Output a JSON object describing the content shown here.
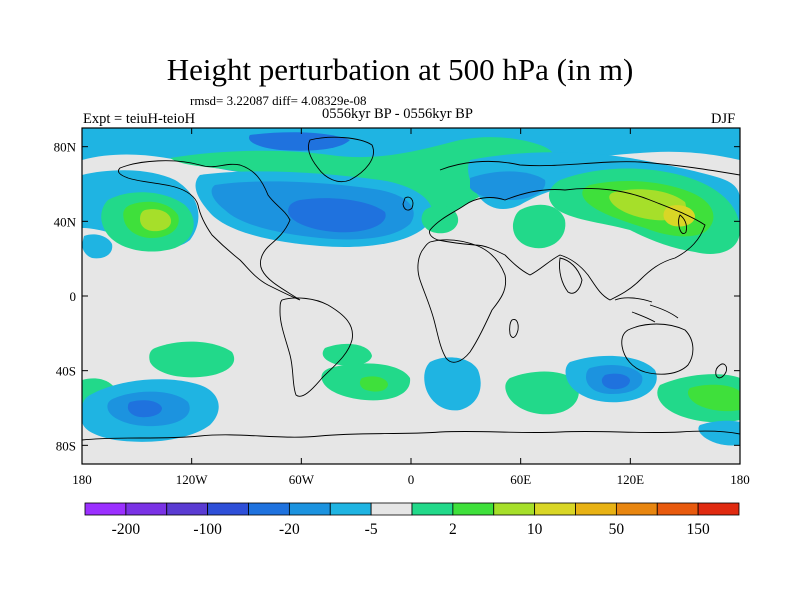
{
  "title": "Height perturbation at 500 hPa (in m)",
  "stats_line": "rmsd= 3.22087 diff= 4.08329e-08",
  "experiment": "Expt = teiuH-teioH",
  "period": "0556kyr BP - 0556kyr BP",
  "season": "DJF",
  "map": {
    "projection": "cylindrical-equidistant",
    "background_color": "#e6e6e6",
    "lat_ticks": [
      "80N",
      "40N",
      "0",
      "40S",
      "80S"
    ],
    "lon_ticks": [
      "180",
      "120W",
      "60W",
      "0",
      "60E",
      "120E",
      "180"
    ]
  },
  "colorbar": {
    "colors": [
      "#9b30ff",
      "#7a32e5",
      "#5a3bd2",
      "#2e4fd8",
      "#1f72de",
      "#1c93df",
      "#1fb4e2",
      "#e6e6e6",
      "#22d98a",
      "#3fe03b",
      "#a6df2a",
      "#d9d626",
      "#e8b214",
      "#e88610",
      "#e85a0e",
      "#e02a10"
    ],
    "labels": [
      "-200",
      "-100",
      "-20",
      "-5",
      "2",
      "10",
      "50",
      "150"
    ]
  },
  "anomaly_features": [
    {
      "id": "n-pacific-high",
      "peak": "10"
    },
    {
      "id": "n-atlantic-low",
      "peak": "-20"
    },
    {
      "id": "arctic-low",
      "peak": "-5"
    },
    {
      "id": "east-asia-high",
      "peak": "10"
    },
    {
      "id": "southern-ocean-features",
      "peak": "-20"
    }
  ]
}
